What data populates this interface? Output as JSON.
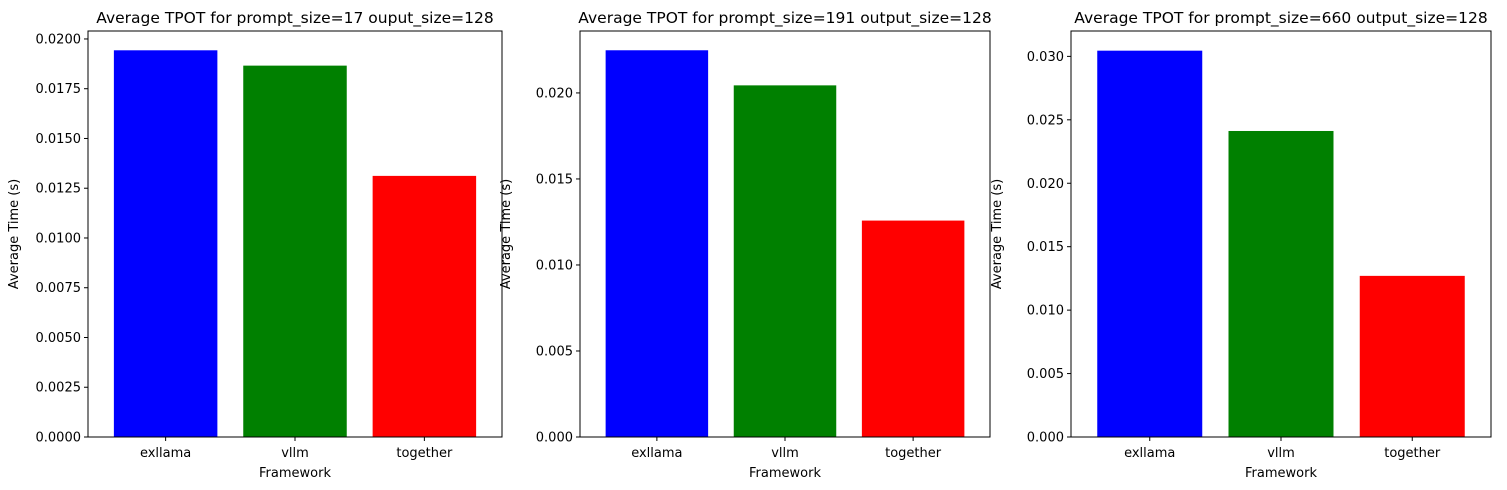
{
  "chart_data": [
    {
      "type": "bar",
      "title": "Average TPOT for prompt_size=17 ouput_size=128",
      "xlabel": "Framework",
      "ylabel": "Average Time (s)",
      "categories": [
        "exllama",
        "vllm",
        "together"
      ],
      "values": [
        0.01943,
        0.01866,
        0.01312
      ],
      "colors": [
        "#0000ff",
        "#008000",
        "#ff0000"
      ],
      "ylim": [
        0,
        0.0204
      ],
      "yticks": [
        0,
        0.0025,
        0.005,
        0.0075,
        0.01,
        0.0125,
        0.015,
        0.0175,
        0.02
      ],
      "ytick_labels": [
        "0.0000",
        "0.0025",
        "0.0050",
        "0.0075",
        "0.0100",
        "0.0125",
        "0.0150",
        "0.0175",
        "0.0200"
      ],
      "grid": false,
      "legend": "none"
    },
    {
      "type": "bar",
      "title": "Average TPOT for prompt_size=191 output_size=128",
      "xlabel": "Framework",
      "ylabel": "Average Time (s)",
      "categories": [
        "exllama",
        "vllm",
        "together"
      ],
      "values": [
        0.02248,
        0.02044,
        0.01258
      ],
      "colors": [
        "#0000ff",
        "#008000",
        "#ff0000"
      ],
      "ylim": [
        0,
        0.0236
      ],
      "yticks": [
        0,
        0.005,
        0.01,
        0.015,
        0.02
      ],
      "ytick_labels": [
        "0.000",
        "0.005",
        "0.010",
        "0.015",
        "0.020"
      ],
      "grid": false,
      "legend": "none"
    },
    {
      "type": "bar",
      "title": "Average TPOT for prompt_size=660 output_size=128",
      "xlabel": "Framework",
      "ylabel": "Average Time (s)",
      "categories": [
        "exllama",
        "vllm",
        "together"
      ],
      "values": [
        0.03045,
        0.02412,
        0.0127
      ],
      "colors": [
        "#0000ff",
        "#008000",
        "#ff0000"
      ],
      "ylim": [
        0,
        0.032
      ],
      "yticks": [
        0,
        0.005,
        0.01,
        0.015,
        0.02,
        0.025,
        0.03
      ],
      "ytick_labels": [
        "0.000",
        "0.005",
        "0.010",
        "0.015",
        "0.020",
        "0.025",
        "0.030"
      ],
      "grid": false,
      "legend": "none"
    }
  ]
}
